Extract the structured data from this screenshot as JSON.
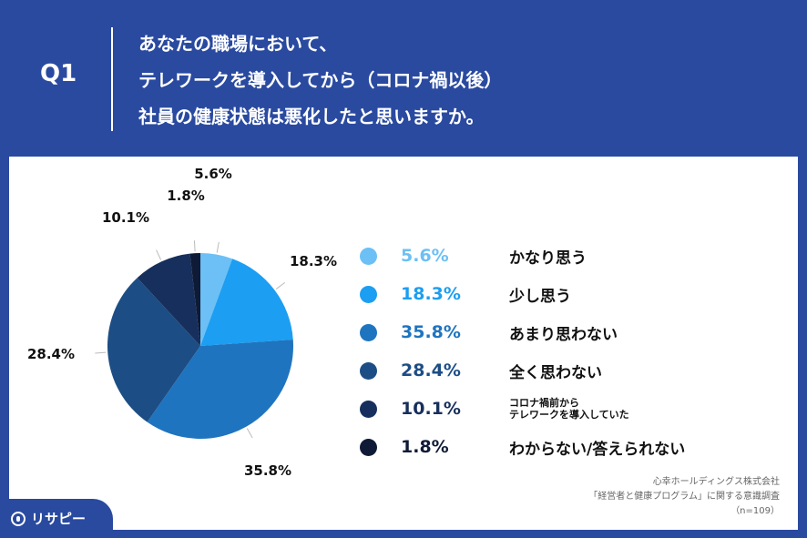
{
  "question": {
    "label": "Q1",
    "lines": [
      "あなたの職場において、",
      "テレワークを導入してから（コロナ禍以後）",
      "社員の健康状態は悪化したと思いますか。"
    ]
  },
  "chart_data": {
    "type": "pie",
    "start_angle_deg": 0,
    "direction": "clockwise",
    "slices": [
      {
        "label": "かなり思う",
        "value": 5.6,
        "display": "5.6%",
        "color": "#6cc0f5"
      },
      {
        "label": "少し思う",
        "value": 18.3,
        "display": "18.3%",
        "color": "#1c9ef2"
      },
      {
        "label": "あまり思わない",
        "value": 35.8,
        "display": "35.8%",
        "color": "#1f74bf"
      },
      {
        "label": "全く思わない",
        "value": 28.4,
        "display": "28.4%",
        "color": "#1c4d85"
      },
      {
        "label": "コロナ禍前から\nテレワークを導入していた",
        "value": 10.1,
        "display": "10.1%",
        "color": "#172f5c"
      },
      {
        "label": "わからない/答えられない",
        "value": 1.8,
        "display": "1.8%",
        "color": "#0f1b36"
      }
    ],
    "legend_placement": "right"
  },
  "source": {
    "lines": [
      "心幸ホールディングス株式会社",
      "「経営者と健康プログラム」に関する意識調査",
      "（n=109）"
    ]
  },
  "brand": {
    "logo_text": "リサピー"
  },
  "colors": {
    "background": "#2a4aa0",
    "panel": "#ffffff"
  }
}
